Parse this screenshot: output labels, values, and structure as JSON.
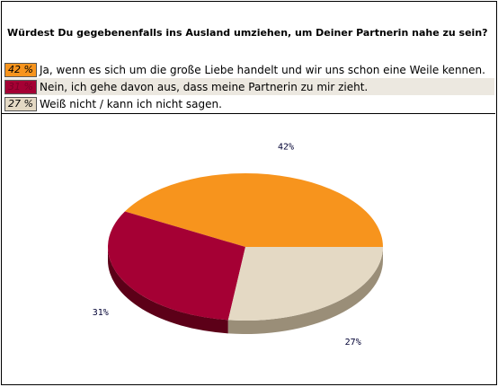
{
  "question": "Würdest Du gegebenenfalls ins Ausland umziehen, um Deiner Partnerin nahe zu sein?",
  "answers": [
    {
      "percent_label": "42 %",
      "text": "Ja, wenn es sich um die große Liebe handelt und wir uns schon eine Weile kennen.",
      "color": "#f7941d",
      "text_color": "#000000"
    },
    {
      "percent_label": "31 %",
      "text": "Nein, ich gehe davon aus, dass meine Partnerin zu mir zieht.",
      "color": "#a50034",
      "text_color": "#7a0026"
    },
    {
      "percent_label": "27 %",
      "text": "Weiß nicht / kann ich nicht sagen.",
      "color": "#e4d9c4",
      "text_color": "#000000"
    }
  ],
  "chart_data": {
    "type": "pie",
    "categories": [
      "Ja, wenn es sich um die große Liebe handelt und wir uns schon eine Weile kennen.",
      "Nein, ich gehe davon aus, dass meine Partnerin zu mir zieht.",
      "Weiß nicht / kann ich nicht sagen."
    ],
    "values": [
      42,
      31,
      27
    ],
    "labels": [
      "42%",
      "31%",
      "27%"
    ],
    "colors": [
      "#f7941d",
      "#a50034",
      "#e4d9c4"
    ],
    "side_colors": [
      "#b86a10",
      "#5c0018",
      "#9a8e78"
    ],
    "style": "3d"
  }
}
